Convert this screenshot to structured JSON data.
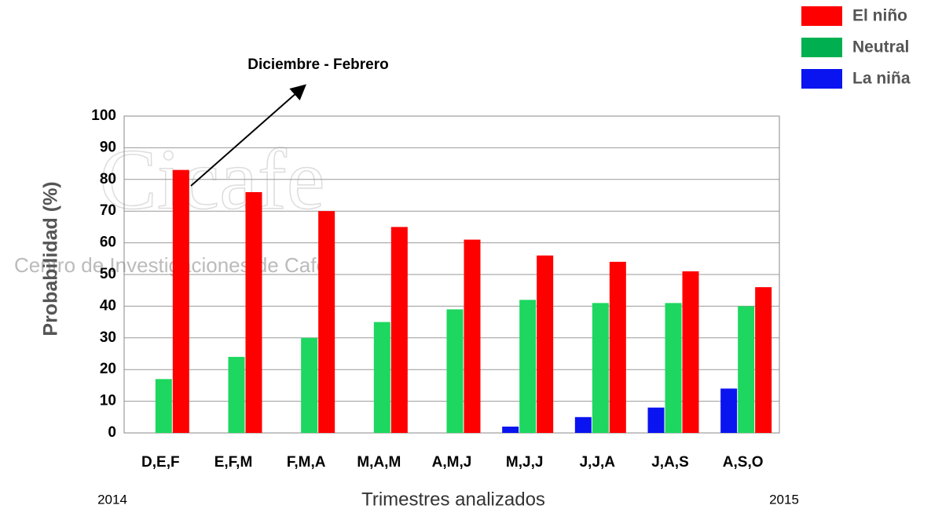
{
  "chart_data": {
    "type": "bar",
    "annotation": "Diciembre - Febrero",
    "watermark": {
      "logo": "Cicafe",
      "text": "Centro de Investigaciones de Café"
    },
    "start_label": "2014",
    "end_label": "2015",
    "xlabel": "Trimestres analizados",
    "ylabel": "Probabilidad (%)",
    "categories": [
      "D,E,F",
      "E,F,M",
      "F,M,A",
      "M,A,M",
      "A,M,J",
      "M,J,J",
      "J,J,A",
      "J,A,S",
      "A,S,O"
    ],
    "series": [
      {
        "name": "La niña",
        "color": "#0a14f0",
        "values": [
          0,
          0,
          0,
          0,
          0,
          2,
          5,
          8,
          14
        ]
      },
      {
        "name": "Neutral",
        "color": "#1ed760",
        "values": [
          17,
          24,
          30,
          35,
          39,
          42,
          41,
          41,
          40
        ]
      },
      {
        "name": "El niño",
        "color": "#ff0000",
        "values": [
          83,
          76,
          70,
          65,
          61,
          56,
          54,
          51,
          46
        ]
      }
    ],
    "legend_colors": [
      "#ff0000",
      "#00b050",
      "#0a14f0"
    ],
    "ylim": [
      0,
      100
    ],
    "yticks": [
      0,
      10,
      20,
      30,
      40,
      50,
      60,
      70,
      80,
      90,
      100
    ],
    "grid": true,
    "legend": "top-right"
  }
}
